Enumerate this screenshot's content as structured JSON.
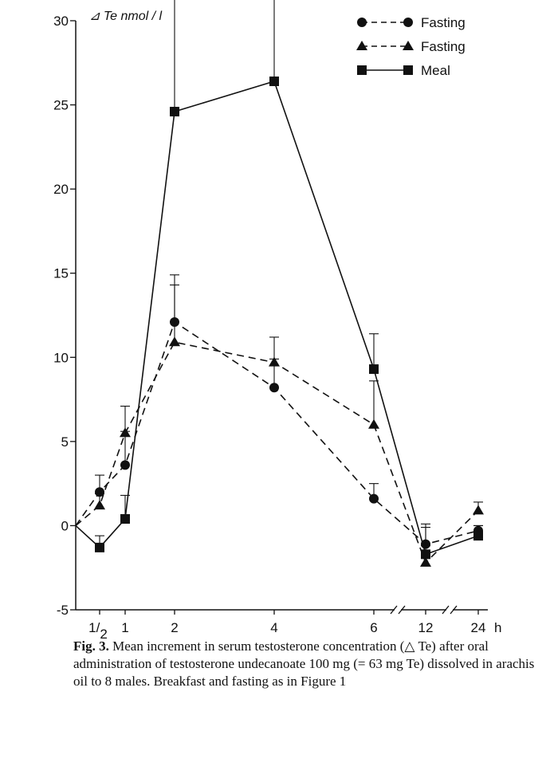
{
  "chart_data": {
    "type": "line",
    "ylabel": "⊿ Te  nmol / l",
    "xlabel": "",
    "x_unit": "h",
    "ylim": [
      -5,
      30
    ],
    "yticks": [
      -5,
      0,
      5,
      10,
      15,
      20,
      25,
      30
    ],
    "xticks": [
      {
        "value": 0.5,
        "label": "1/2"
      },
      {
        "value": 1,
        "label": "1"
      },
      {
        "value": 2,
        "label": "2"
      },
      {
        "value": 4,
        "label": "4"
      },
      {
        "value": 6,
        "label": "6"
      },
      {
        "value": 12,
        "label": "12"
      },
      {
        "value": 24,
        "label": "24"
      }
    ],
    "grid": false,
    "legend_position": "top-right",
    "series": [
      {
        "name": "Fasting",
        "marker": "circle",
        "line": "dashed",
        "x": [
          0,
          0.5,
          1,
          2,
          4,
          6,
          12,
          24
        ],
        "y": [
          0,
          2.0,
          3.6,
          12.1,
          8.2,
          1.6,
          -1.1,
          -0.3
        ],
        "error": [
          null,
          1.0,
          2.0,
          2.2,
          1.7,
          0.9,
          1.2,
          0.3
        ]
      },
      {
        "name": "Fasting",
        "marker": "triangle",
        "line": "dashed",
        "x": [
          0,
          0.5,
          1,
          2,
          4,
          6,
          12,
          24
        ],
        "y": [
          0,
          1.2,
          5.5,
          10.9,
          9.7,
          6.0,
          -2.2,
          0.9
        ],
        "error": [
          null,
          0.7,
          1.6,
          4.0,
          1.5,
          2.6,
          1.0,
          0.5
        ]
      },
      {
        "name": "Meal",
        "marker": "square",
        "line": "solid",
        "x": [
          0,
          0.5,
          1,
          2,
          4,
          6,
          12,
          24
        ],
        "y": [
          0,
          -1.3,
          0.4,
          24.6,
          26.4,
          9.3,
          -1.7,
          -0.6
        ],
        "error": [
          null,
          0.7,
          1.4,
          8.6,
          5.6,
          2.1,
          1.6,
          0.6
        ]
      }
    ]
  },
  "caption": {
    "fig_label": "Fig. 3.",
    "text": " Mean increment in serum testosterone concentration (△ Te) after oral administration of testosterone undecanoate 100 mg (= 63 mg Te) dissolved in arachis oil to 8 males. Breakfast and fasting as in Figure 1"
  }
}
